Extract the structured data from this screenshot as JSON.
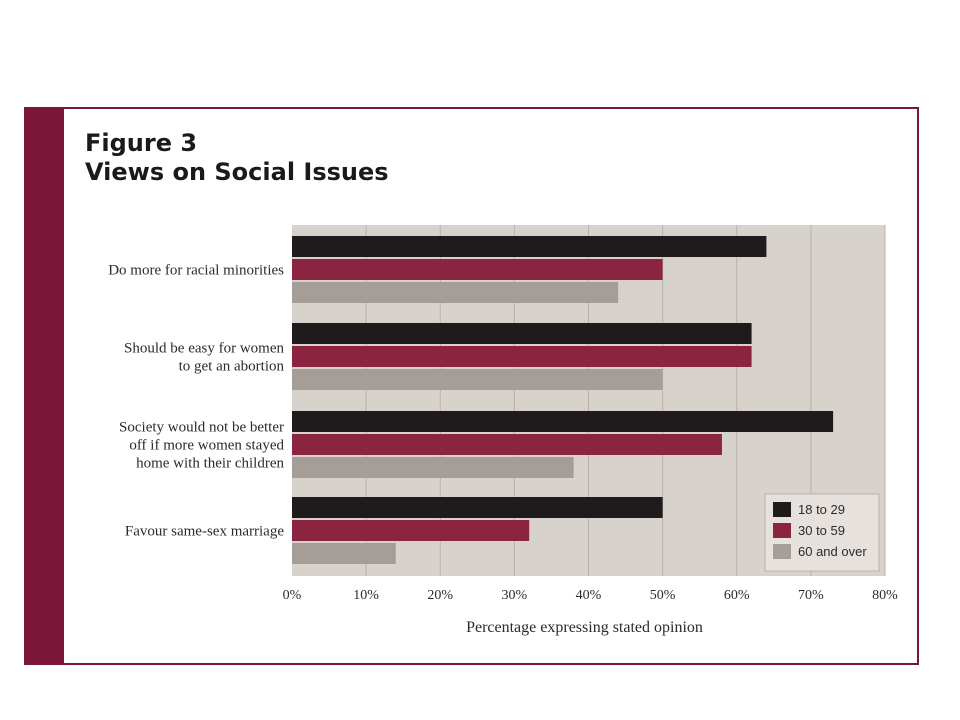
{
  "chart_data": {
    "type": "bar",
    "orientation": "horizontal",
    "title": "Figure 3",
    "subtitle": "Views on Social Issues",
    "xlabel": "Percentage expressing stated opinion",
    "ylabel": "",
    "xlim": [
      0,
      80
    ],
    "x_ticks": [
      "0%",
      "10%",
      "20%",
      "30%",
      "40%",
      "50%",
      "60%",
      "70%",
      "80%"
    ],
    "grid": true,
    "legend_position": "bottom-right",
    "categories": [
      [
        "Do more for racial minorities"
      ],
      [
        "Should be easy for women",
        "to get an abortion"
      ],
      [
        "Society would not be better",
        "off if more women stayed",
        "home with their children"
      ],
      [
        "Favour same-sex marriage"
      ]
    ],
    "series": [
      {
        "name": "18 to 29",
        "color": "#1f1a1c",
        "values": [
          64,
          62,
          73,
          50
        ]
      },
      {
        "name": "30 to 59",
        "color": "#8b2440",
        "values": [
          50,
          62,
          58,
          32
        ]
      },
      {
        "name": "60 and over",
        "color": "#a59e98",
        "values": [
          44,
          50,
          38,
          14
        ]
      }
    ]
  },
  "colors": {
    "frame": "#7a1638",
    "plot_background": "#d8d2cc",
    "grid": "#b9b2ab"
  }
}
